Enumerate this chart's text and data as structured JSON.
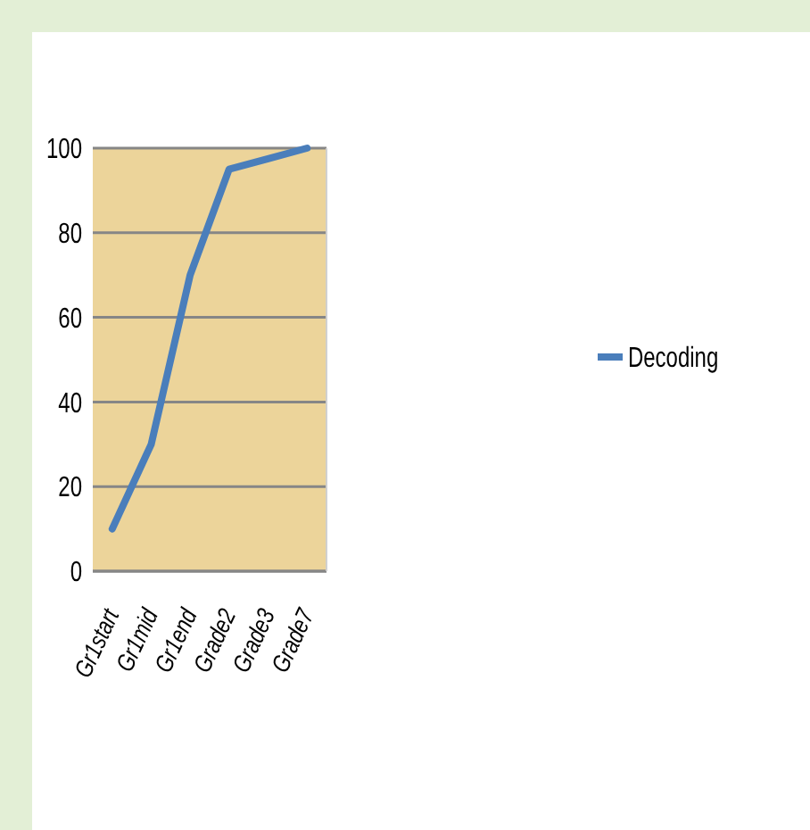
{
  "chart_data": {
    "type": "line",
    "categories": [
      "Gr1start",
      "Gr1mid",
      "Gr1end",
      "Grade2",
      "Grade3",
      "Grade7"
    ],
    "series": [
      {
        "name": "Decoding",
        "color": "#4a7ebb",
        "values": [
          10,
          30,
          70,
          95,
          97.5,
          100
        ]
      }
    ],
    "ylim": [
      0,
      100
    ],
    "yticks": [
      0,
      20,
      40,
      60,
      80,
      100
    ],
    "grid": "y",
    "legend": "right",
    "marker": "none"
  }
}
